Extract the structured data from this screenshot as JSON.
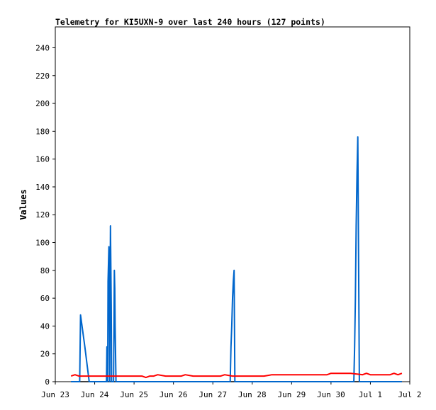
{
  "chart_data": {
    "type": "line",
    "title": "Telemetry for KI5UXN-9 over last 240 hours (127 points)",
    "xlabel": "",
    "ylabel": "Values",
    "ylim": [
      0,
      255
    ],
    "yticks": [
      0,
      20,
      40,
      60,
      80,
      100,
      120,
      140,
      160,
      180,
      200,
      220,
      240
    ],
    "xticks": [
      {
        "label": "Jun 23",
        "day": 23
      },
      {
        "label": "Jun 24",
        "day": 24
      },
      {
        "label": "Jun 25",
        "day": 25
      },
      {
        "label": "Jun 26",
        "day": 26
      },
      {
        "label": "Jun 27",
        "day": 27
      },
      {
        "label": "Jun 28",
        "day": 28
      },
      {
        "label": "Jun 29",
        "day": 29
      },
      {
        "label": "Jun 30",
        "day": 30
      },
      {
        "label": "Jul 1",
        "day": 31
      },
      {
        "label": "Jul 2",
        "day": 32
      }
    ],
    "xlim": [
      23.0,
      32.0
    ],
    "grid": false,
    "series": [
      {
        "color": "#0066cc",
        "x": [
          23.4,
          23.62,
          23.64,
          23.75,
          23.86,
          24.1,
          24.25,
          24.3,
          24.31,
          24.33,
          24.34,
          24.36,
          24.38,
          24.4,
          24.42,
          24.43,
          24.44,
          24.46,
          24.48,
          24.5,
          24.51,
          24.52,
          24.54,
          24.56,
          24.58,
          24.6,
          25.0,
          26.0,
          27.0,
          27.4,
          27.44,
          27.46,
          27.48,
          27.5,
          27.52,
          27.54,
          27.56,
          27.58,
          27.6,
          27.62,
          28.0,
          29.0,
          30.0,
          30.55,
          30.58,
          30.6,
          30.62,
          30.64,
          30.66,
          30.68,
          30.7,
          30.72,
          30.74,
          30.76,
          30.78,
          31.0,
          31.5,
          31.8
        ],
        "y": [
          0,
          0,
          48,
          25,
          0,
          0,
          0,
          0,
          25,
          0,
          72,
          97,
          0,
          112,
          55,
          0,
          0,
          0,
          0,
          80,
          67,
          40,
          0,
          0,
          0,
          0,
          0,
          0,
          0,
          0,
          0,
          25,
          40,
          60,
          72,
          80,
          0,
          0,
          0,
          0,
          0,
          0,
          0,
          0,
          0,
          25,
          60,
          112,
          150,
          176,
          88,
          0,
          0,
          0,
          0,
          0,
          0,
          0
        ]
      },
      {
        "color": "#ff0000",
        "x": [
          23.4,
          23.5,
          23.6,
          23.7,
          24.0,
          24.5,
          25.0,
          25.2,
          25.3,
          25.4,
          25.5,
          25.6,
          25.8,
          26.0,
          26.2,
          26.3,
          26.5,
          27.0,
          27.2,
          27.3,
          27.5,
          28.0,
          28.3,
          28.5,
          29.0,
          29.5,
          29.9,
          30.0,
          30.5,
          30.8,
          30.9,
          31.0,
          31.2,
          31.5,
          31.6,
          31.7,
          31.8
        ],
        "y": [
          4,
          5,
          4,
          4,
          4,
          4,
          4,
          4,
          3,
          4,
          4,
          5,
          4,
          4,
          4,
          5,
          4,
          4,
          4,
          5,
          4,
          4,
          4,
          5,
          5,
          5,
          5,
          6,
          6,
          5,
          6,
          5,
          5,
          5,
          6,
          5,
          6
        ]
      }
    ]
  }
}
